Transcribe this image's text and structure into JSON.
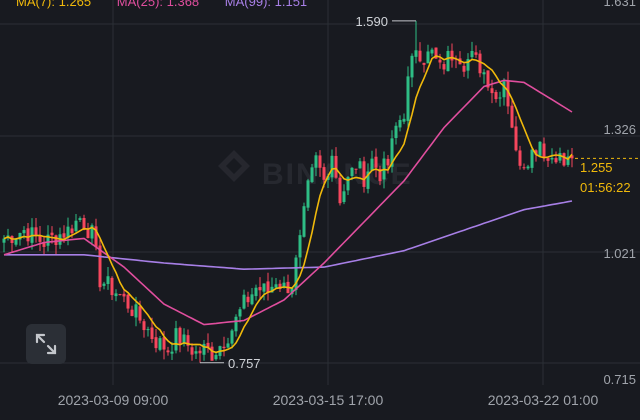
{
  "legend": {
    "ma7": "MA(7): 1.265",
    "ma25": "MA(25): 1.368",
    "ma99": "MA(99): 1.151"
  },
  "price_tag": {
    "price": "1.255",
    "countdown": "01:56:22"
  },
  "watermark": "BINANCE",
  "colors": {
    "up": "#2ebd85",
    "down": "#f6465d",
    "ma7": "#f0b90b",
    "ma25": "#e04e9e",
    "ma99": "#a77fe6",
    "grid": "#2b2f36",
    "axis_text": "#a0a4ab",
    "background": "#181a20"
  },
  "icons": {
    "expand": "expand-arrows-icon"
  },
  "chart_data": {
    "type": "candlestick",
    "y_ticks": [
      "1.631",
      "1.326",
      "1.021",
      "0.715"
    ],
    "y_tick_values": [
      1.631,
      1.326,
      1.021,
      0.715
    ],
    "ylim": [
      0.715,
      1.631
    ],
    "x_ticks": [
      "2023-03-09 09:00",
      "2023-03-15 17:00",
      "2023-03-22 01:00"
    ],
    "annotations": [
      {
        "label": "1.590",
        "value": 1.59,
        "type": "high"
      },
      {
        "label": "0.757",
        "value": 0.757,
        "type": "low"
      }
    ],
    "last_price": 1.255,
    "ma_latest": {
      "ma7": 1.265,
      "ma25": 1.368,
      "ma99": 1.151
    },
    "anchors": [
      [
        0,
        1.06
      ],
      [
        5,
        1.08
      ],
      [
        10,
        1.05
      ],
      [
        16,
        1.08
      ],
      [
        19,
        1.11
      ],
      [
        22,
        1.07
      ],
      [
        24,
        0.96
      ],
      [
        28,
        0.93
      ],
      [
        31,
        0.9
      ],
      [
        35,
        0.85
      ],
      [
        38,
        0.81
      ],
      [
        41,
        0.79
      ],
      [
        43,
        0.82
      ],
      [
        46,
        0.8
      ],
      [
        48,
        0.78
      ],
      [
        50,
        0.79
      ],
      [
        52,
        0.78
      ],
      [
        54,
        0.8
      ],
      [
        57,
        0.84
      ],
      [
        60,
        0.9
      ],
      [
        63,
        0.94
      ],
      [
        66,
        0.93
      ],
      [
        68,
        0.96
      ],
      [
        70,
        0.94
      ],
      [
        72,
        0.95
      ],
      [
        74,
        1.05
      ],
      [
        76,
        1.18
      ],
      [
        78,
        1.25
      ],
      [
        80,
        1.2
      ],
      [
        82,
        1.27
      ],
      [
        84,
        1.16
      ],
      [
        86,
        1.2
      ],
      [
        88,
        1.24
      ],
      [
        90,
        1.21
      ],
      [
        92,
        1.25
      ],
      [
        94,
        1.22
      ],
      [
        96,
        1.24
      ],
      [
        98,
        1.33
      ],
      [
        100,
        1.37
      ],
      [
        101,
        1.44
      ],
      [
        103,
        1.53
      ],
      [
        105,
        1.5
      ],
      [
        107,
        1.51
      ],
      [
        109,
        1.47
      ],
      [
        111,
        1.5
      ],
      [
        113,
        1.52
      ],
      [
        115,
        1.49
      ],
      [
        117,
        1.5
      ],
      [
        119,
        1.48
      ],
      [
        121,
        1.45
      ],
      [
        123,
        1.4
      ],
      [
        125,
        1.45
      ],
      [
        127,
        1.34
      ],
      [
        128,
        1.26
      ],
      [
        130,
        1.25
      ],
      [
        132,
        1.27
      ],
      [
        134,
        1.3
      ],
      [
        136,
        1.25
      ],
      [
        138,
        1.27
      ],
      [
        140,
        1.24
      ],
      [
        142,
        1.255
      ]
    ],
    "ma25_path": [
      [
        0,
        1.02
      ],
      [
        10,
        1.05
      ],
      [
        20,
        1.06
      ],
      [
        30,
        0.99
      ],
      [
        40,
        0.9
      ],
      [
        50,
        0.85
      ],
      [
        60,
        0.86
      ],
      [
        70,
        0.91
      ],
      [
        80,
        1.0
      ],
      [
        90,
        1.1
      ],
      [
        100,
        1.2
      ],
      [
        110,
        1.33
      ],
      [
        120,
        1.43
      ],
      [
        125,
        1.445
      ],
      [
        130,
        1.44
      ],
      [
        135,
        1.41
      ],
      [
        140,
        1.38
      ],
      [
        142,
        1.368
      ]
    ],
    "ma99_path": [
      [
        0,
        1.02
      ],
      [
        20,
        1.02
      ],
      [
        40,
        1.0
      ],
      [
        60,
        0.985
      ],
      [
        80,
        0.99
      ],
      [
        100,
        1.03
      ],
      [
        115,
        1.08
      ],
      [
        130,
        1.13
      ],
      [
        142,
        1.151
      ]
    ],
    "candle_count": 143,
    "candle_seed": 7
  }
}
